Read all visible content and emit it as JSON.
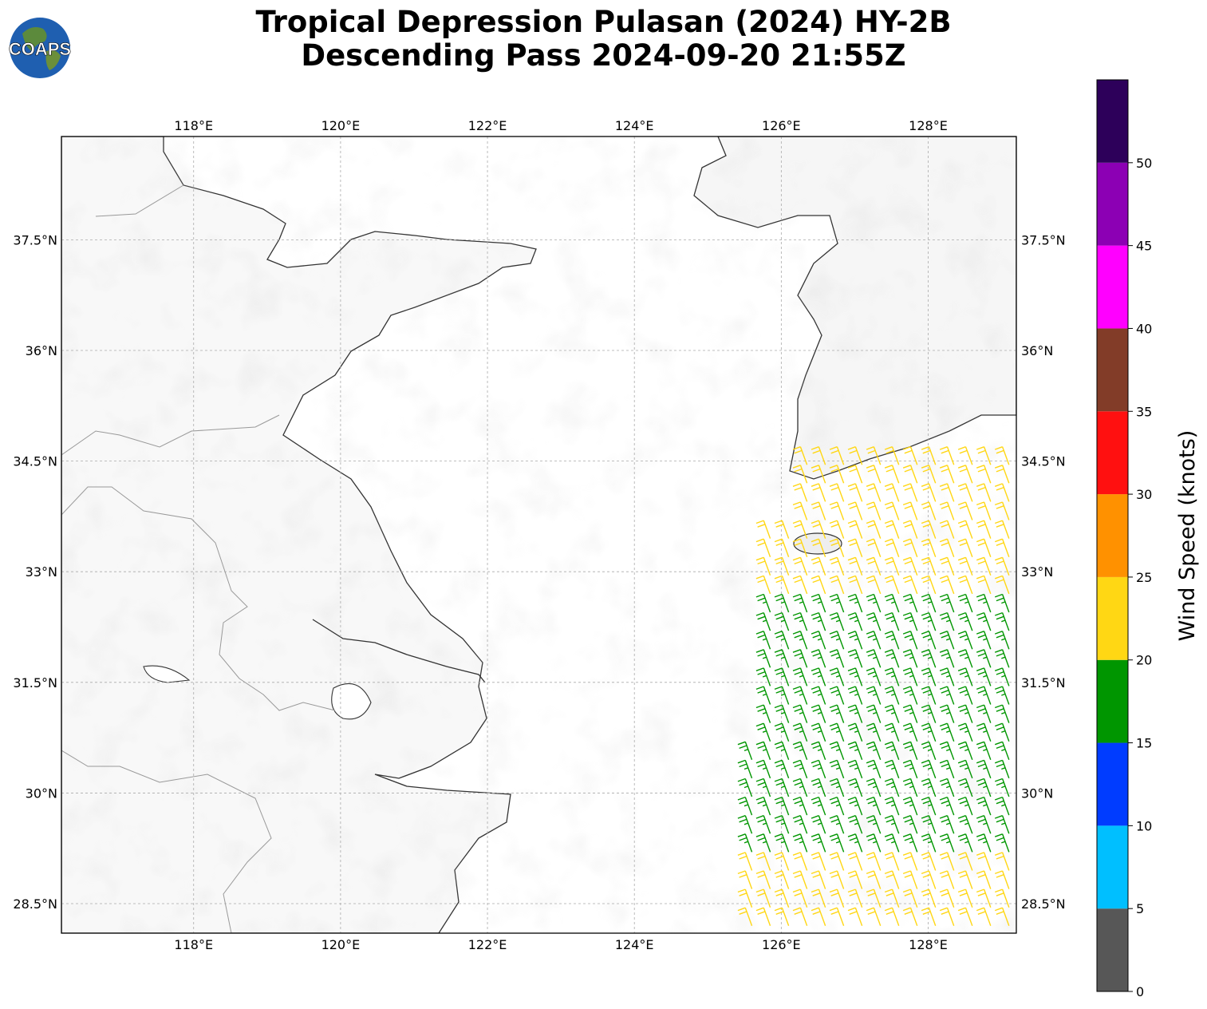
{
  "title": {
    "line1": "Tropical Depression Pulasan (2024) HY-2B",
    "line2": "Descending Pass 2024-09-20 21:55Z"
  },
  "logo": {
    "text": "COAPS"
  },
  "map": {
    "lon_range": [
      116.2,
      129.2
    ],
    "lat_range": [
      28.1,
      38.9
    ],
    "lon_ticks": [
      "118°E",
      "120°E",
      "122°E",
      "124°E",
      "126°E",
      "128°E"
    ],
    "lat_ticks": [
      "37.5°N",
      "36°N",
      "34.5°N",
      "33°N",
      "31.5°N",
      "30°N",
      "28.5°N"
    ],
    "lon_values": [
      118,
      120,
      122,
      124,
      126,
      128
    ],
    "lat_values": [
      37.5,
      36,
      34.5,
      33,
      31.5,
      30,
      28.5
    ],
    "grid": true,
    "background": "topography-gray"
  },
  "colorbar": {
    "label": "Wind Speed (knots)",
    "ticks": [
      "0",
      "5",
      "10",
      "15",
      "20",
      "25",
      "30",
      "35",
      "40",
      "45",
      "50"
    ],
    "bins": [
      {
        "from": 0,
        "to": 5,
        "color": "#575757"
      },
      {
        "from": 5,
        "to": 10,
        "color": "#00bfff"
      },
      {
        "from": 10,
        "to": 15,
        "color": "#003cff"
      },
      {
        "from": 15,
        "to": 20,
        "color": "#009600"
      },
      {
        "from": 20,
        "to": 25,
        "color": "#ffd714"
      },
      {
        "from": 25,
        "to": 30,
        "color": "#ff9100"
      },
      {
        "from": 30,
        "to": 35,
        "color": "#ff1010"
      },
      {
        "from": 35,
        "to": 40,
        "color": "#823c28"
      },
      {
        "from": 40,
        "to": 45,
        "color": "#ff00ff"
      },
      {
        "from": 45,
        "to": 50,
        "color": "#8c00b4"
      },
      {
        "from": 50,
        "to": 55,
        "color": "#2d005a"
      }
    ]
  },
  "wind_barbs": {
    "units": "knots",
    "direction_from_deg": 200,
    "swath_lon_range": [
      125.4,
      129.2
    ],
    "swath_lat_range": [
      28.1,
      34.5
    ],
    "regions": [
      {
        "lat_from": 28.1,
        "lat_to": 29.2,
        "speed_kt": 22
      },
      {
        "lat_from": 29.2,
        "lat_to": 32.5,
        "speed_kt": 17
      },
      {
        "lat_from": 32.5,
        "lat_to": 34.5,
        "speed_kt": 22
      }
    ]
  }
}
